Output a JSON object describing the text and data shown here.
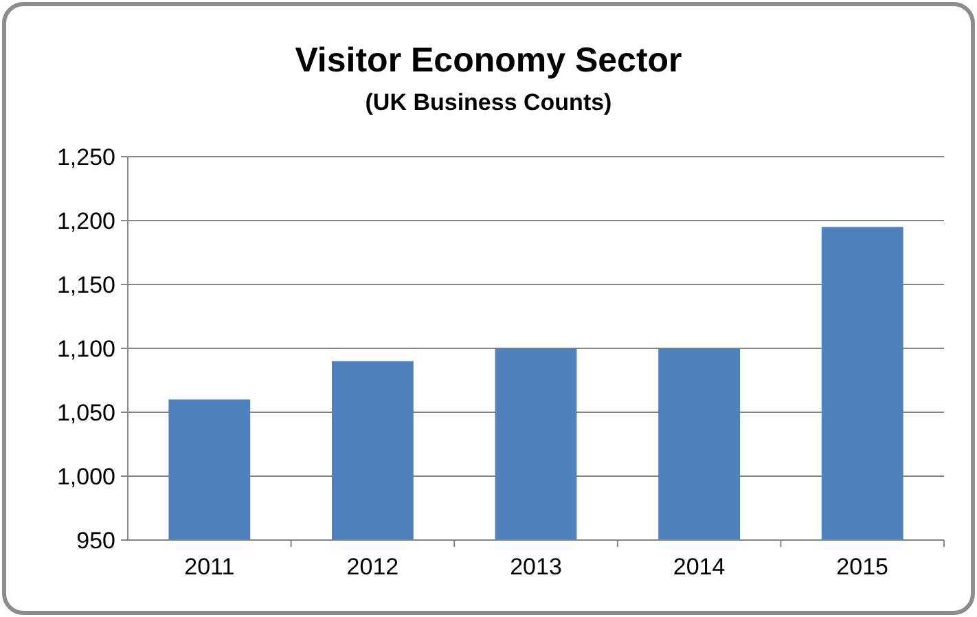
{
  "chart_data": {
    "type": "bar",
    "title": "Visitor Economy Sector",
    "subtitle": "(UK Business Counts)",
    "categories": [
      "2011",
      "2012",
      "2013",
      "2014",
      "2015"
    ],
    "values": [
      1060,
      1090,
      1100,
      1100,
      1195
    ],
    "color": "#4f81bd",
    "ylim": [
      950,
      1250
    ],
    "yticks": [
      {
        "value": 950,
        "label": "950"
      },
      {
        "value": 1000,
        "label": "1,000"
      },
      {
        "value": 1050,
        "label": "1,050"
      },
      {
        "value": 1100,
        "label": "1,100"
      },
      {
        "value": 1150,
        "label": "1,150"
      },
      {
        "value": 1200,
        "label": "1,200"
      },
      {
        "value": 1250,
        "label": "1,250"
      }
    ],
    "grid": "y"
  }
}
